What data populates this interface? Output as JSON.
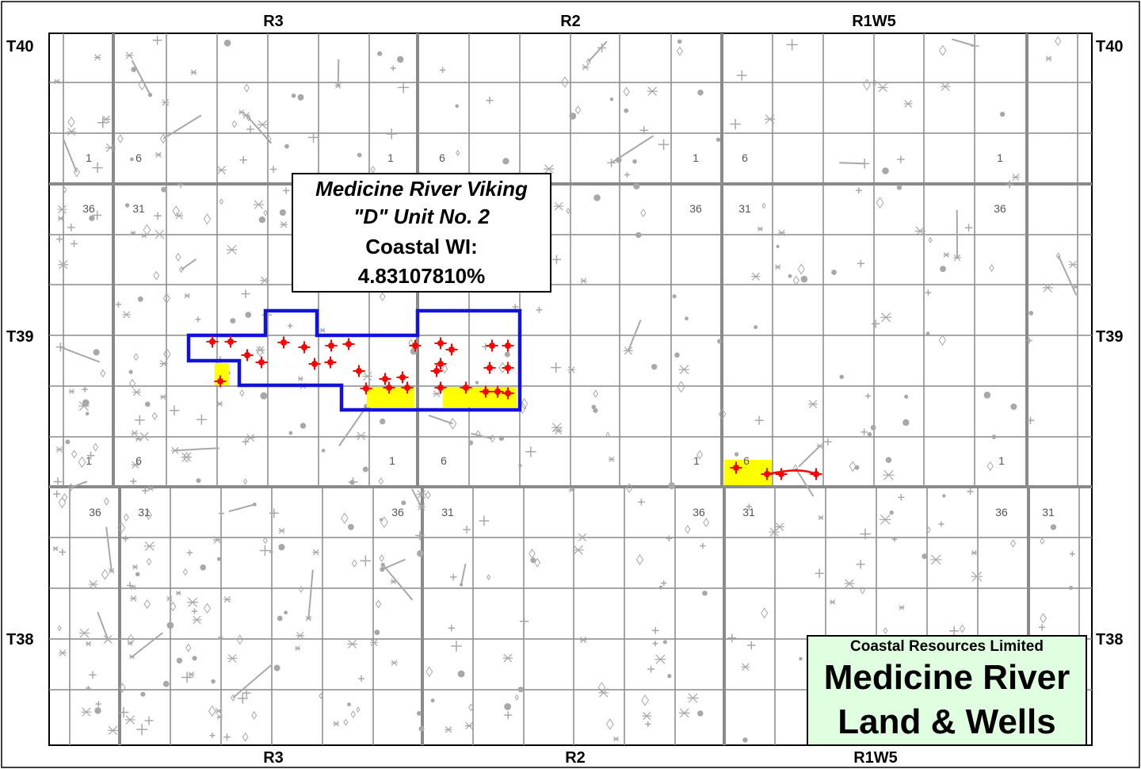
{
  "range_labels_top": [
    "R3",
    "R2",
    "R1W5"
  ],
  "range_labels_bottom": [
    "R3",
    "R2",
    "R1W5"
  ],
  "township_labels_left": [
    "T40",
    "T39",
    "T38"
  ],
  "township_labels_right": [
    "T40",
    "T39",
    "T38"
  ],
  "section_numbers": [
    "1",
    "6",
    "1",
    "6",
    "1",
    "6",
    "1",
    "36",
    "31",
    "36",
    "31",
    "36",
    "1",
    "6",
    "1",
    "6",
    "1",
    "6",
    "1",
    "36",
    "31",
    "36",
    "31",
    "36",
    "31",
    "36",
    "31"
  ],
  "unit_callout": {
    "line1": "Medicine River Viking",
    "line2": "\"D\" Unit No. 2",
    "line3": "Coastal WI:",
    "line4": "4.83107810%"
  },
  "title_block": {
    "company": "Coastal Resources Limited",
    "title_line1": "Medicine River",
    "title_line2": "Land & Wells"
  },
  "colors": {
    "grid": "#8a8a8a",
    "unit_outline": "#1212d8",
    "coastal_land": "#ffff00",
    "coastal_wells": "#ff0000",
    "other_wells": "#a8a8a8",
    "title_bg": "#e0ffe0"
  }
}
